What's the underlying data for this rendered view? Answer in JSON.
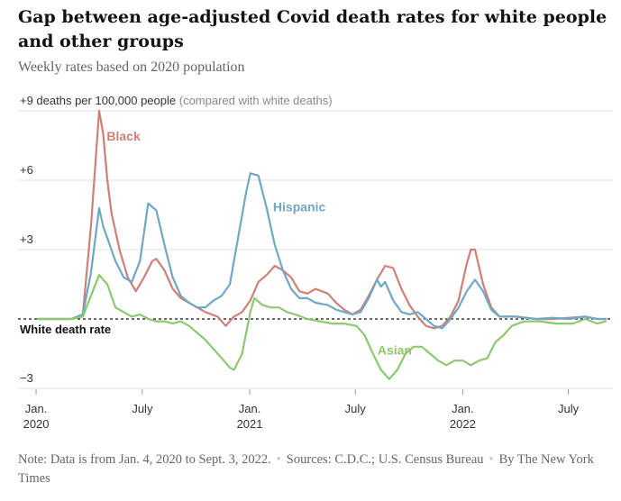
{
  "header": {
    "title": "Gap between age-adjusted Covid death rates for white people and other groups",
    "subtitle": "Weekly rates based on 2020 population"
  },
  "colors": {
    "black": "#cf7f78",
    "hispanic": "#6fa8c6",
    "asian": "#8dc86f",
    "grid": "#e2e2e2",
    "baseline": "#121212",
    "text": "#121212",
    "muted": "#666666"
  },
  "footer": {
    "note": "Note: Data is from Jan. 4, 2020 to Sept. 3, 2022.",
    "sources": "Sources: C.D.C.; U.S. Census Bureau",
    "byline": "By The New York Times"
  },
  "chart_data": {
    "type": "line",
    "title": "Gap between age-adjusted Covid death rates for white people and other groups",
    "subtitle": "Weekly rates based on 2020 population",
    "ylabel_top": "+9 deaths per 100,000 people",
    "ylabel_top_suffix": "(compared with white deaths)",
    "yticks": [
      {
        "value": 9,
        "label": ""
      },
      {
        "value": 6,
        "label": "+6"
      },
      {
        "value": 3,
        "label": "+3"
      },
      {
        "value": -3,
        "label": "−3"
      }
    ],
    "ylim": [
      -3.2,
      9.3
    ],
    "baseline_label": "White death rate",
    "xticks": [
      {
        "date": "2020-01-01",
        "label": "Jan.",
        "sublabel": "2020"
      },
      {
        "date": "2020-07-01",
        "label": "July",
        "sublabel": ""
      },
      {
        "date": "2021-01-01",
        "label": "Jan.",
        "sublabel": "2021"
      },
      {
        "date": "2021-07-01",
        "label": "July",
        "sublabel": ""
      },
      {
        "date": "2022-01-01",
        "label": "Jan.",
        "sublabel": "2022"
      },
      {
        "date": "2022-07-01",
        "label": "July",
        "sublabel": ""
      }
    ],
    "xlim": [
      "2020-01-04",
      "2022-09-03"
    ],
    "grid": true,
    "series": [
      {
        "name": "Black",
        "color": "#cf7f78",
        "label_date": "2020-05-01",
        "label_value": 7.9,
        "points": [
          [
            "2020-01-04",
            0
          ],
          [
            "2020-02-01",
            0
          ],
          [
            "2020-03-01",
            0
          ],
          [
            "2020-03-21",
            0.2
          ],
          [
            "2020-04-04",
            4.0
          ],
          [
            "2020-04-18",
            9.0
          ],
          [
            "2020-04-25",
            8.0
          ],
          [
            "2020-05-02",
            6.0
          ],
          [
            "2020-05-09",
            4.6
          ],
          [
            "2020-05-23",
            3.0
          ],
          [
            "2020-06-06",
            1.8
          ],
          [
            "2020-06-20",
            1.2
          ],
          [
            "2020-07-04",
            1.8
          ],
          [
            "2020-07-18",
            2.5
          ],
          [
            "2020-07-25",
            2.6
          ],
          [
            "2020-08-08",
            2.1
          ],
          [
            "2020-08-22",
            1.3
          ],
          [
            "2020-09-05",
            0.9
          ],
          [
            "2020-09-19",
            0.7
          ],
          [
            "2020-10-03",
            0.5
          ],
          [
            "2020-10-17",
            0.3
          ],
          [
            "2020-11-07",
            0.1
          ],
          [
            "2020-11-21",
            -0.3
          ],
          [
            "2020-12-05",
            0.1
          ],
          [
            "2020-12-19",
            0.3
          ],
          [
            "2021-01-02",
            0.8
          ],
          [
            "2021-01-16",
            1.6
          ],
          [
            "2021-01-30",
            1.9
          ],
          [
            "2021-02-13",
            2.3
          ],
          [
            "2021-02-27",
            2.1
          ],
          [
            "2021-03-13",
            1.8
          ],
          [
            "2021-03-27",
            1.2
          ],
          [
            "2021-04-10",
            1.1
          ],
          [
            "2021-04-24",
            1.3
          ],
          [
            "2021-05-15",
            1.1
          ],
          [
            "2021-05-29",
            0.7
          ],
          [
            "2021-06-12",
            0.4
          ],
          [
            "2021-06-26",
            0.2
          ],
          [
            "2021-07-10",
            0.4
          ],
          [
            "2021-07-24",
            1.0
          ],
          [
            "2021-08-07",
            1.7
          ],
          [
            "2021-08-21",
            2.3
          ],
          [
            "2021-09-04",
            2.2
          ],
          [
            "2021-09-18",
            1.3
          ],
          [
            "2021-10-02",
            0.6
          ],
          [
            "2021-10-16",
            0.1
          ],
          [
            "2021-10-30",
            -0.3
          ],
          [
            "2021-11-13",
            -0.4
          ],
          [
            "2021-11-27",
            -0.3
          ],
          [
            "2021-12-11",
            0.1
          ],
          [
            "2021-12-25",
            0.8
          ],
          [
            "2022-01-08",
            2.4
          ],
          [
            "2022-01-15",
            3.0
          ],
          [
            "2022-01-22",
            3.0
          ],
          [
            "2022-02-05",
            1.5
          ],
          [
            "2022-02-19",
            0.5
          ],
          [
            "2022-03-05",
            0.1
          ],
          [
            "2022-04-02",
            0.1
          ],
          [
            "2022-05-07",
            0.0
          ],
          [
            "2022-06-04",
            0.0
          ],
          [
            "2022-07-02",
            0.05
          ],
          [
            "2022-07-30",
            0.1
          ],
          [
            "2022-08-20",
            0.0
          ],
          [
            "2022-09-03",
            0.0
          ]
        ]
      },
      {
        "name": "Hispanic",
        "color": "#6fa8c6",
        "label_date": "2021-02-10",
        "label_value": 4.85,
        "points": [
          [
            "2020-01-04",
            0
          ],
          [
            "2020-02-01",
            0
          ],
          [
            "2020-03-01",
            0
          ],
          [
            "2020-03-21",
            0.2
          ],
          [
            "2020-04-04",
            2.0
          ],
          [
            "2020-04-18",
            4.8
          ],
          [
            "2020-04-25",
            4.0
          ],
          [
            "2020-05-02",
            3.5
          ],
          [
            "2020-05-16",
            2.5
          ],
          [
            "2020-05-30",
            1.8
          ],
          [
            "2020-06-13",
            1.6
          ],
          [
            "2020-06-27",
            2.5
          ],
          [
            "2020-07-11",
            5.0
          ],
          [
            "2020-07-25",
            4.7
          ],
          [
            "2020-08-08",
            3.2
          ],
          [
            "2020-08-22",
            1.8
          ],
          [
            "2020-09-05",
            1.0
          ],
          [
            "2020-09-19",
            0.7
          ],
          [
            "2020-10-03",
            0.5
          ],
          [
            "2020-10-17",
            0.5
          ],
          [
            "2020-10-31",
            0.8
          ],
          [
            "2020-11-14",
            1.0
          ],
          [
            "2020-11-28",
            1.5
          ],
          [
            "2020-12-12",
            3.5
          ],
          [
            "2020-12-26",
            5.5
          ],
          [
            "2021-01-02",
            6.3
          ],
          [
            "2021-01-16",
            6.2
          ],
          [
            "2021-01-30",
            4.8
          ],
          [
            "2021-02-13",
            3.2
          ],
          [
            "2021-02-27",
            2.1
          ],
          [
            "2021-03-13",
            1.3
          ],
          [
            "2021-03-27",
            0.9
          ],
          [
            "2021-04-10",
            0.9
          ],
          [
            "2021-04-24",
            0.7
          ],
          [
            "2021-05-15",
            0.6
          ],
          [
            "2021-05-29",
            0.4
          ],
          [
            "2021-06-12",
            0.3
          ],
          [
            "2021-06-26",
            0.2
          ],
          [
            "2021-07-10",
            0.3
          ],
          [
            "2021-07-24",
            0.9
          ],
          [
            "2021-08-07",
            1.7
          ],
          [
            "2021-08-14",
            1.4
          ],
          [
            "2021-08-21",
            1.6
          ],
          [
            "2021-09-04",
            0.8
          ],
          [
            "2021-09-18",
            0.3
          ],
          [
            "2021-10-02",
            0.2
          ],
          [
            "2021-10-16",
            0.3
          ],
          [
            "2021-10-30",
            0.0
          ],
          [
            "2021-11-13",
            -0.3
          ],
          [
            "2021-11-27",
            -0.4
          ],
          [
            "2021-12-11",
            0.0
          ],
          [
            "2021-12-25",
            0.5
          ],
          [
            "2022-01-08",
            1.2
          ],
          [
            "2022-01-22",
            1.7
          ],
          [
            "2022-02-05",
            1.2
          ],
          [
            "2022-02-19",
            0.4
          ],
          [
            "2022-03-05",
            0.1
          ],
          [
            "2022-04-02",
            0.1
          ],
          [
            "2022-05-07",
            0.0
          ],
          [
            "2022-06-04",
            0.05
          ],
          [
            "2022-07-02",
            0.0
          ],
          [
            "2022-07-30",
            0.1
          ],
          [
            "2022-08-20",
            0.0
          ],
          [
            "2022-09-03",
            0.0
          ]
        ]
      },
      {
        "name": "Asian",
        "color": "#8dc86f",
        "label_date": "2021-08-08",
        "label_value": -1.35,
        "points": [
          [
            "2020-01-04",
            0
          ],
          [
            "2020-02-01",
            0
          ],
          [
            "2020-03-01",
            0
          ],
          [
            "2020-03-21",
            0.1
          ],
          [
            "2020-04-04",
            1.0
          ],
          [
            "2020-04-18",
            1.9
          ],
          [
            "2020-05-02",
            1.5
          ],
          [
            "2020-05-16",
            0.5
          ],
          [
            "2020-05-30",
            0.3
          ],
          [
            "2020-06-13",
            0.1
          ],
          [
            "2020-06-27",
            0.2
          ],
          [
            "2020-07-11",
            0.0
          ],
          [
            "2020-07-25",
            -0.1
          ],
          [
            "2020-08-08",
            -0.1
          ],
          [
            "2020-08-22",
            -0.2
          ],
          [
            "2020-09-05",
            -0.1
          ],
          [
            "2020-09-19",
            -0.3
          ],
          [
            "2020-10-03",
            -0.6
          ],
          [
            "2020-10-17",
            -0.9
          ],
          [
            "2020-10-31",
            -1.3
          ],
          [
            "2020-11-14",
            -1.7
          ],
          [
            "2020-11-28",
            -2.1
          ],
          [
            "2020-12-05",
            -2.2
          ],
          [
            "2020-12-19",
            -1.5
          ],
          [
            "2021-01-02",
            0.3
          ],
          [
            "2021-01-09",
            0.9
          ],
          [
            "2021-01-23",
            0.6
          ],
          [
            "2021-02-06",
            0.5
          ],
          [
            "2021-02-20",
            0.5
          ],
          [
            "2021-03-06",
            0.3
          ],
          [
            "2021-03-20",
            0.2
          ],
          [
            "2021-04-10",
            0.0
          ],
          [
            "2021-05-01",
            -0.1
          ],
          [
            "2021-05-22",
            -0.2
          ],
          [
            "2021-06-12",
            -0.2
          ],
          [
            "2021-07-03",
            -0.3
          ],
          [
            "2021-07-17",
            -0.7
          ],
          [
            "2021-07-31",
            -1.5
          ],
          [
            "2021-08-14",
            -2.2
          ],
          [
            "2021-08-28",
            -2.6
          ],
          [
            "2021-09-11",
            -2.2
          ],
          [
            "2021-09-25",
            -1.5
          ],
          [
            "2021-10-09",
            -1.2
          ],
          [
            "2021-10-23",
            -1.2
          ],
          [
            "2021-11-06",
            -1.5
          ],
          [
            "2021-11-20",
            -1.8
          ],
          [
            "2021-12-04",
            -2.0
          ],
          [
            "2021-12-18",
            -1.8
          ],
          [
            "2022-01-01",
            -1.8
          ],
          [
            "2022-01-15",
            -2.0
          ],
          [
            "2022-01-29",
            -1.8
          ],
          [
            "2022-02-12",
            -1.7
          ],
          [
            "2022-02-26",
            -1.0
          ],
          [
            "2022-03-12",
            -0.7
          ],
          [
            "2022-03-26",
            -0.3
          ],
          [
            "2022-04-16",
            -0.1
          ],
          [
            "2022-05-14",
            -0.1
          ],
          [
            "2022-06-11",
            -0.2
          ],
          [
            "2022-07-09",
            -0.2
          ],
          [
            "2022-07-30",
            0.0
          ],
          [
            "2022-08-20",
            -0.2
          ],
          [
            "2022-09-03",
            -0.1
          ]
        ]
      }
    ]
  }
}
